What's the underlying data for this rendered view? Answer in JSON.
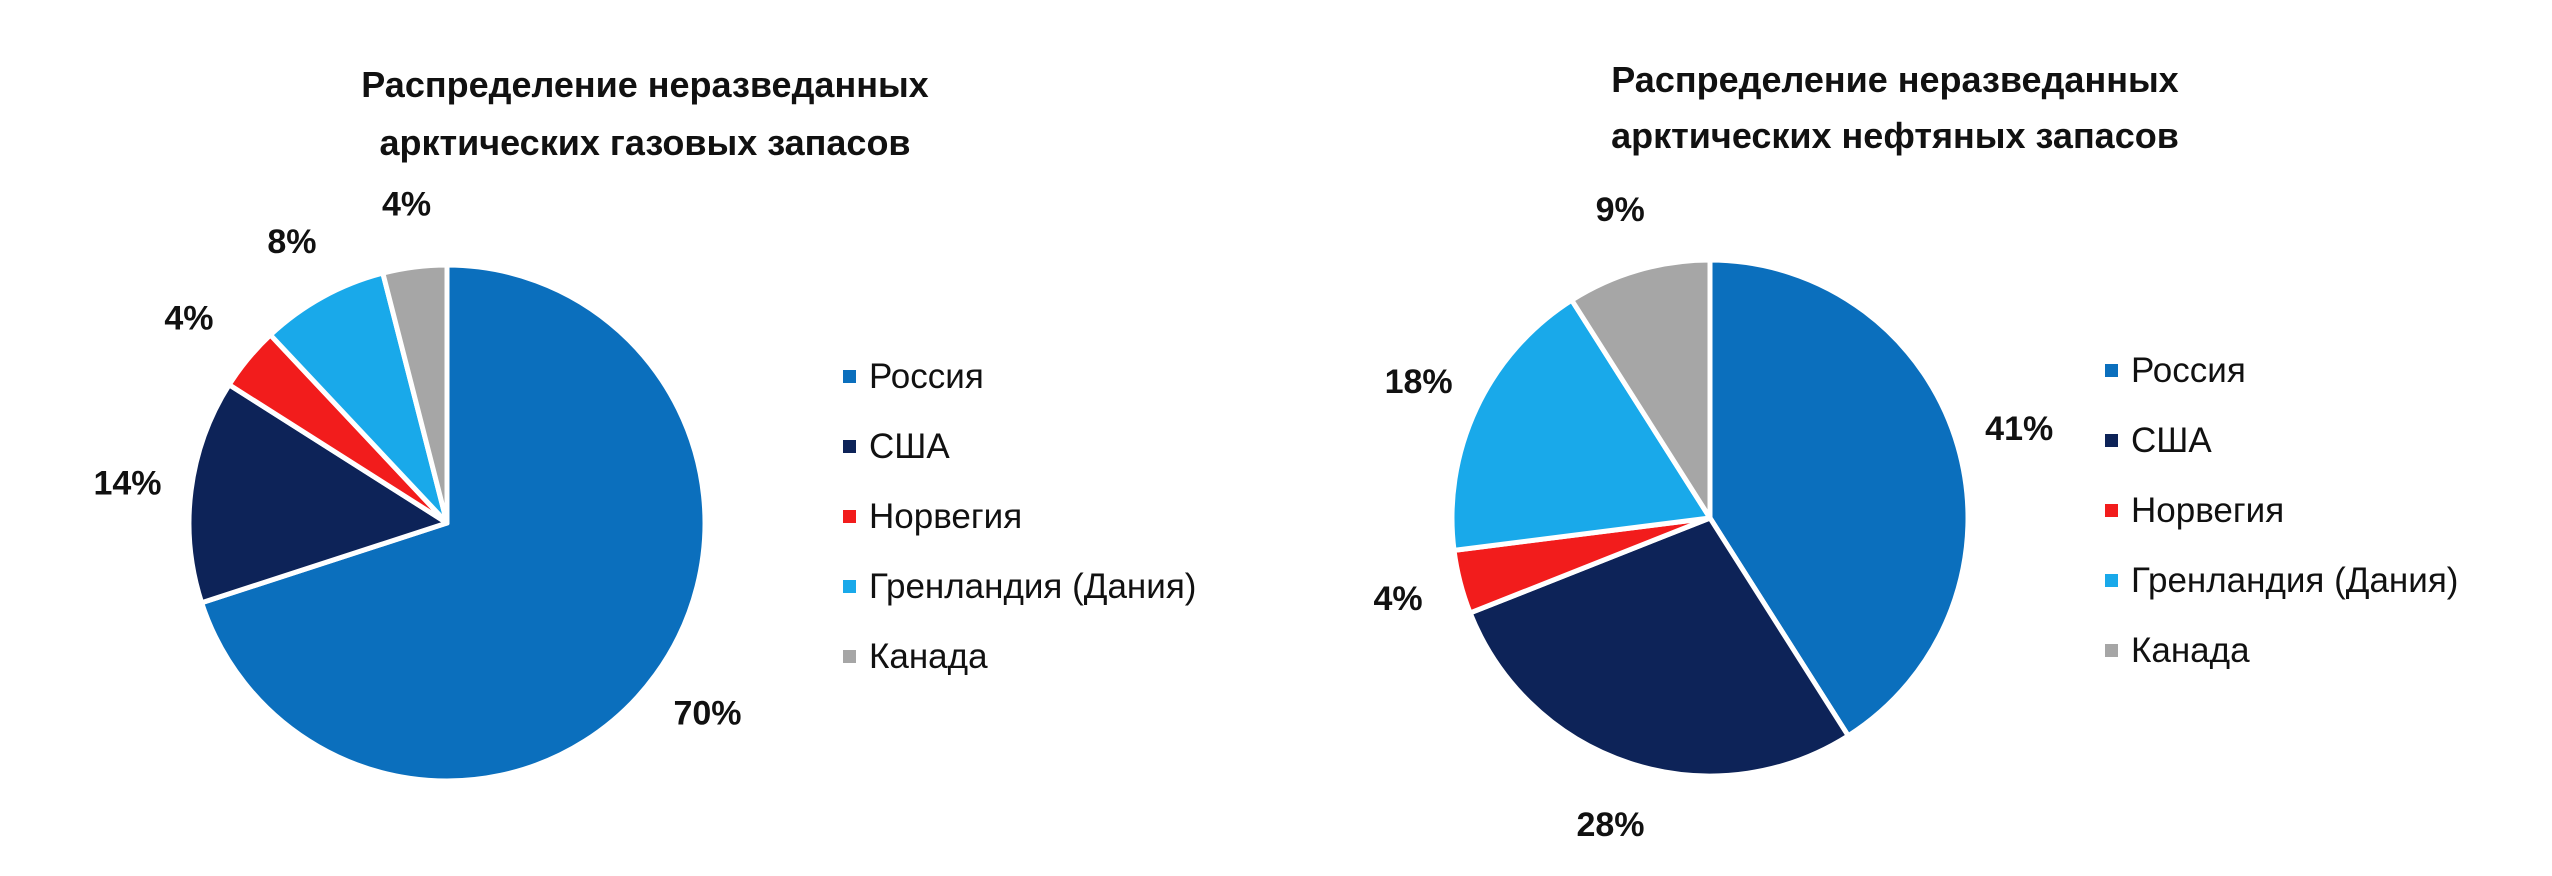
{
  "colors": {
    "russia": "#0b6fbd",
    "usa": "#0d2358",
    "norway": "#f21c1c",
    "greenland": "#19a9ea",
    "canada": "#a6a6a6"
  },
  "chart_data": [
    {
      "type": "pie",
      "title_lines": [
        "Распределение неразведанных",
        "арктических газовых запасов"
      ],
      "slices": [
        {
          "name": "Россия",
          "value": 70,
          "label": "70%",
          "color": "#0b6fbd"
        },
        {
          "name": "США",
          "value": 14,
          "label": "14%",
          "color": "#0d2358"
        },
        {
          "name": "Норвегия",
          "value": 4,
          "label": "4%",
          "color": "#f21c1c"
        },
        {
          "name": "Гренландия (Дания)",
          "value": 8,
          "label": "8%",
          "color": "#19a9ea"
        },
        {
          "name": "Канада",
          "value": 4,
          "label": "4%",
          "color": "#a6a6a6"
        }
      ],
      "legend": [
        "Россия",
        "США",
        "Норвегия",
        "Гренландия (Дания)",
        "Канада"
      ],
      "legend_position": "right"
    },
    {
      "type": "pie",
      "title_lines": [
        "Распределение неразведанных",
        "арктических нефтяных запасов"
      ],
      "slices": [
        {
          "name": "Россия",
          "value": 41,
          "label": "41%",
          "color": "#0b6fbd"
        },
        {
          "name": "США",
          "value": 28,
          "label": "28%",
          "color": "#0d2358"
        },
        {
          "name": "Норвегия",
          "value": 4,
          "label": "4%",
          "color": "#f21c1c"
        },
        {
          "name": "Гренландия (Дания)",
          "value": 18,
          "label": "18%",
          "color": "#19a9ea"
        },
        {
          "name": "Канада",
          "value": 9,
          "label": "9%",
          "color": "#a6a6a6"
        }
      ],
      "legend": [
        "Россия",
        "США",
        "Норвегия",
        "Гренландия (Дания)",
        "Канада"
      ],
      "legend_position": "right"
    }
  ]
}
